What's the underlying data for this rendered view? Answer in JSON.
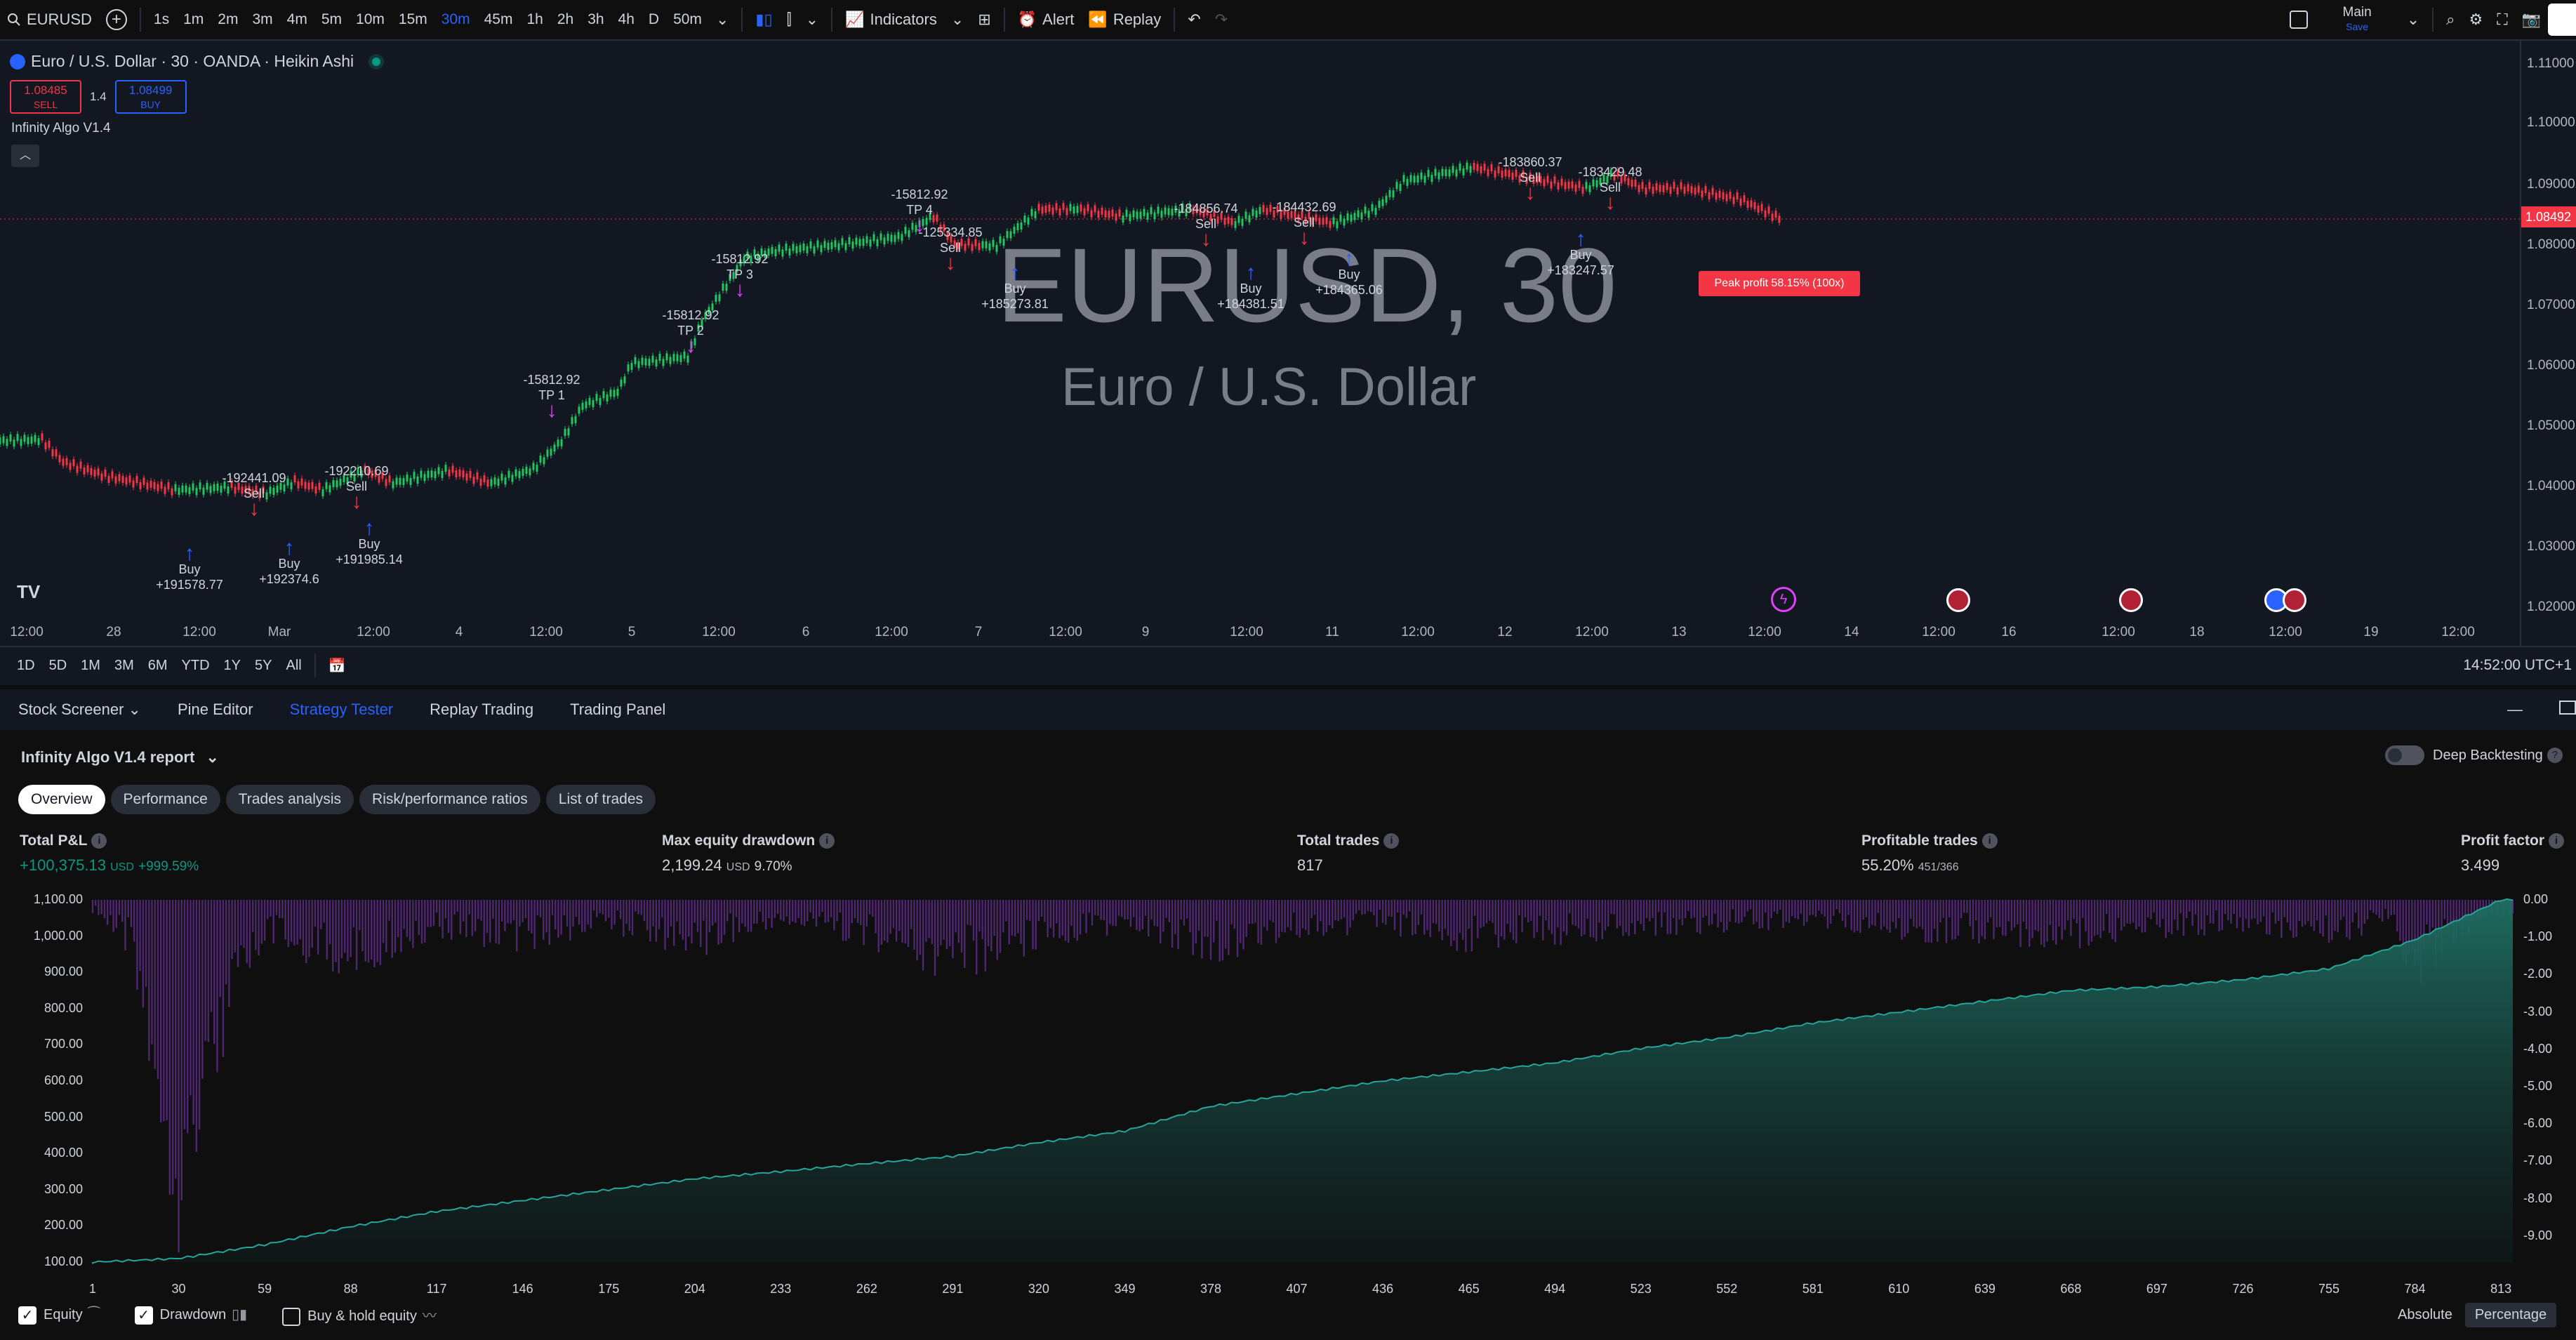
{
  "toolbar": {
    "symbol": "EURUSD",
    "timeframes": [
      "1s",
      "1m",
      "2m",
      "3m",
      "4m",
      "5m",
      "10m",
      "15m",
      "30m",
      "45m",
      "1h",
      "2h",
      "3h",
      "4h",
      "D",
      "50m"
    ],
    "active_timeframe": "30m",
    "indicators_label": "Indicators",
    "alert_label": "Alert",
    "replay_label": "Replay",
    "layout_name": "Main",
    "layout_sub": "Save"
  },
  "chart": {
    "title": "Euro / U.S. Dollar · 30 · OANDA · Heikin Ashi",
    "sell_price": "1.08485",
    "sell_label": "SELL",
    "spread": "1.4",
    "buy_price": "1.08499",
    "buy_label": "BUY",
    "indicator_name": "Infinity Algo V1.4",
    "watermark_symbol": "EURUSD, 30",
    "watermark_name": "Euro / U.S. Dollar",
    "peak_profit": "Peak profit 58.15% (100x)",
    "last_price": "1.08492",
    "price_ticks": [
      "1.11000",
      "1.10000",
      "1.09000",
      "1.08000",
      "1.07000",
      "1.06000",
      "1.05000",
      "1.04000",
      "1.03000",
      "1.02000"
    ],
    "time_ticks": [
      "12:00",
      "28",
      "12:00",
      "Mar",
      "12:00",
      "4",
      "12:00",
      "5",
      "12:00",
      "6",
      "12:00",
      "7",
      "12:00",
      "9",
      "12:00",
      "11",
      "12:00",
      "12",
      "12:00",
      "13",
      "12:00",
      "14",
      "12:00",
      "16",
      "12:00",
      "18",
      "12:00",
      "19",
      "12:00"
    ],
    "signals": [
      {
        "text": "Buy\n+191578.77",
        "type": "buy"
      },
      {
        "text": "-192441.09\nSell",
        "type": "sell"
      },
      {
        "text": "Buy\n+192374.6",
        "type": "buy"
      },
      {
        "text": "-192210.69\nSell",
        "type": "sell"
      },
      {
        "text": "Buy\n+191985.14",
        "type": "buy"
      },
      {
        "text": "-15812.92\nTP 1",
        "type": "tp"
      },
      {
        "text": "-15812.92\nTP 2",
        "type": "tp"
      },
      {
        "text": "-15812.92\nTP 3",
        "type": "tp"
      },
      {
        "text": "-15812.92\nTP 4",
        "type": "tp"
      },
      {
        "text": "-125334.85\nSell",
        "type": "sell"
      },
      {
        "text": "Buy\n+185273.81",
        "type": "buy"
      },
      {
        "text": "-184856.74\nSell",
        "type": "sell"
      },
      {
        "text": "Buy\n+184381.51",
        "type": "buy"
      },
      {
        "text": "-184432.69\nSell",
        "type": "sell"
      },
      {
        "text": "Buy\n+184365.06",
        "type": "buy"
      },
      {
        "text": "-183860.37\nSell",
        "type": "sell"
      },
      {
        "text": "-183429.48\nSell",
        "type": "sell"
      },
      {
        "text": "Buy\n+183247.57",
        "type": "buy"
      }
    ]
  },
  "range_bar": {
    "ranges": [
      "1D",
      "5D",
      "1M",
      "3M",
      "6M",
      "YTD",
      "1Y",
      "5Y",
      "All"
    ],
    "clock": "14:52:00 UTC+1"
  },
  "bottom_tabs": [
    "Stock Screener",
    "Pine Editor",
    "Strategy Tester",
    "Replay Trading",
    "Trading Panel"
  ],
  "active_bottom_tab": "Strategy Tester",
  "report": {
    "title": "Infinity Algo V1.4 report",
    "deep_backtesting": "Deep Backtesting",
    "tabs": [
      "Overview",
      "Performance",
      "Trades analysis",
      "Risk/performance ratios",
      "List of trades"
    ],
    "active_tab": "Overview",
    "metrics": {
      "pnl_label": "Total P&L",
      "pnl_value": "+100,375.13",
      "pnl_unit": "USD",
      "pnl_pct": "+999.59%",
      "dd_label": "Max equity drawdown",
      "dd_value": "2,199.24",
      "dd_unit": "USD",
      "dd_pct": "9.70%",
      "trades_label": "Total trades",
      "trades_value": "817",
      "profitable_label": "Profitable trades",
      "profitable_value": "55.20%",
      "profitable_ratio": "451/366",
      "pf_label": "Profit factor",
      "pf_value": "3.499"
    },
    "legend": {
      "equity": "Equity",
      "drawdown": "Drawdown",
      "buy_hold": "Buy & hold equity",
      "absolute": "Absolute",
      "percentage": "Percentage"
    }
  },
  "chart_data": {
    "type": "area",
    "x_ticks": [
      1,
      30,
      59,
      88,
      117,
      146,
      175,
      204,
      233,
      262,
      291,
      320,
      349,
      378,
      407,
      436,
      465,
      494,
      523,
      552,
      581,
      610,
      639,
      668,
      697,
      726,
      755,
      784,
      813
    ],
    "y_left_ticks": [
      "1,100.00",
      "1,000.00",
      "900.00",
      "800.00",
      "700.00",
      "600.00",
      "500.00",
      "400.00",
      "300.00",
      "200.00",
      "100.00"
    ],
    "y_right_ticks": [
      "0.00",
      "-1.00",
      "-2.00",
      "-3.00",
      "-4.00",
      "-5.00",
      "-6.00",
      "-7.00",
      "-8.00",
      "-9.00"
    ],
    "ylim_left": [
      100,
      1100
    ],
    "ylim_right": [
      -9.7,
      0
    ],
    "series": [
      {
        "name": "Equity",
        "x": [
          1,
          30,
          59,
          88,
          117,
          146,
          175,
          204,
          233,
          262,
          291,
          320,
          349,
          378,
          407,
          436,
          465,
          494,
          523,
          552,
          581,
          610,
          639,
          668,
          697,
          726,
          755,
          784,
          813,
          817
        ],
        "values": [
          100,
          110,
          148,
          198,
          240,
          270,
          300,
          330,
          350,
          372,
          392,
          430,
          462,
          530,
          565,
          600,
          625,
          650,
          690,
          720,
          760,
          790,
          820,
          850,
          860,
          880,
          910,
          990,
          1100,
          1100
        ]
      },
      {
        "name": "Drawdown",
        "x": [
          1,
          15,
          30,
          40,
          59,
          88,
          117,
          146,
          175,
          204,
          233,
          262,
          291,
          320,
          349,
          378,
          407,
          436,
          465,
          494,
          523,
          552,
          581,
          610,
          639,
          668,
          697,
          726,
          755,
          775,
          784,
          800,
          813
        ],
        "values": [
          -0.3,
          -1.5,
          -9.5,
          -5.0,
          -1.0,
          -1.8,
          -0.8,
          -1.2,
          -0.7,
          -1.3,
          -0.6,
          -1.0,
          -2.0,
          -1.1,
          -0.8,
          -1.4,
          -0.9,
          -0.7,
          -1.2,
          -1.0,
          -0.8,
          -0.7,
          -0.6,
          -0.9,
          -1.0,
          -1.1,
          -0.9,
          -0.7,
          -1.0,
          -0.6,
          -2.0,
          -0.8,
          -0.4
        ]
      }
    ]
  }
}
